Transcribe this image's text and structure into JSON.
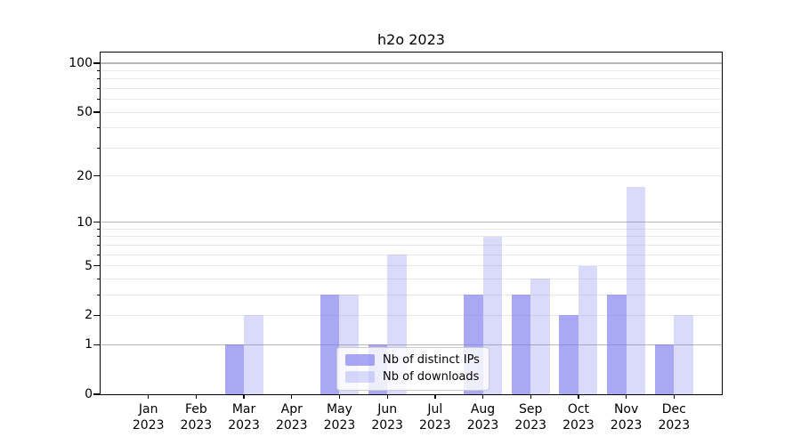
{
  "chart_data": {
    "type": "bar",
    "title": "h2o 2023",
    "year": "2023",
    "months": [
      "Jan",
      "Feb",
      "Mar",
      "Apr",
      "May",
      "Jun",
      "Jul",
      "Aug",
      "Sep",
      "Oct",
      "Nov",
      "Dec"
    ],
    "series": [
      {
        "name": "Nb of distinct IPs",
        "color": "rgba(122,122,240,0.65)",
        "values": [
          0,
          0,
          1,
          0,
          3,
          1,
          0,
          3,
          3,
          2,
          3,
          1
        ]
      },
      {
        "name": "Nb of downloads",
        "color": "rgba(122,122,240,0.28)",
        "values": [
          0,
          0,
          2,
          0,
          3,
          6,
          0,
          8,
          4,
          5,
          17,
          2
        ]
      }
    ],
    "yscale": "log1p",
    "ylim": [
      0,
      115
    ],
    "ytick_values": [
      0,
      1,
      2,
      5,
      10,
      20,
      50,
      100
    ],
    "ytick_labels": [
      "0",
      "1",
      "2",
      "5",
      "10",
      "20",
      "50",
      "100"
    ],
    "minor_tick_values": [
      3,
      4,
      6,
      7,
      8,
      9,
      30,
      40,
      60,
      70,
      80,
      90
    ],
    "major_gridlines": [
      1,
      10,
      100
    ],
    "minor_gridlines": [
      2,
      3,
      4,
      5,
      6,
      7,
      8,
      9,
      20,
      30,
      40,
      50,
      60,
      70,
      80,
      90
    ],
    "grid": true,
    "legend_position": "lower center",
    "colors": {
      "grid_major": "#b7b7b7",
      "grid_minor": "#e9e9e9",
      "axis": "#000000",
      "legend_bg": "rgba(255,255,255,0.8)",
      "legend_border": "#cccccc"
    }
  }
}
